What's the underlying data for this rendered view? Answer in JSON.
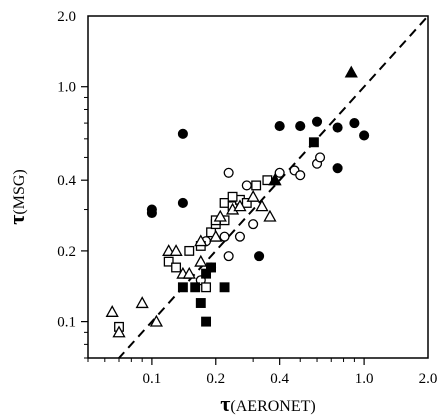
{
  "chart_data": {
    "type": "scatter",
    "title": "",
    "xlabel": {
      "symbol": "τ",
      "text": "(AERONET)"
    },
    "ylabel": {
      "symbol": "τ",
      "text": "(MSG)"
    },
    "xscale": "log",
    "yscale": "log",
    "xlim": [
      0.05,
      2.0
    ],
    "ylim": [
      0.07,
      2.0
    ],
    "xticks": [
      {
        "value": 0.1,
        "label": "0.1"
      },
      {
        "value": 0.2,
        "label": "0.2"
      },
      {
        "value": 0.4,
        "label": "0.4"
      },
      {
        "value": 1.0,
        "label": "1.0"
      },
      {
        "value": 2.0,
        "label": "2.0"
      }
    ],
    "yticks": [
      {
        "value": 0.1,
        "label": "0.1"
      },
      {
        "value": 0.2,
        "label": "0.2"
      },
      {
        "value": 0.4,
        "label": "0.4"
      },
      {
        "value": 1.0,
        "label": "1.0"
      },
      {
        "value": 2.0,
        "label": "2.0"
      }
    ],
    "reference_line": {
      "style": "dashed",
      "relation": "y = x"
    },
    "grid": false,
    "legend": "none",
    "series": [
      {
        "marker": "filled-circle",
        "points": [
          [
            0.1,
            0.3
          ],
          [
            0.1,
            0.29
          ],
          [
            0.14,
            0.32
          ],
          [
            0.14,
            0.63
          ],
          [
            0.32,
            0.19
          ],
          [
            0.4,
            0.68
          ],
          [
            0.5,
            0.68
          ],
          [
            0.6,
            0.71
          ],
          [
            0.75,
            0.67
          ],
          [
            0.75,
            0.45
          ],
          [
            0.9,
            0.7
          ],
          [
            1.0,
            0.62
          ]
        ]
      },
      {
        "marker": "open-circle",
        "points": [
          [
            0.18,
            0.22
          ],
          [
            0.23,
            0.19
          ],
          [
            0.26,
            0.23
          ],
          [
            0.28,
            0.38
          ],
          [
            0.23,
            0.43
          ],
          [
            0.4,
            0.43
          ],
          [
            0.47,
            0.44
          ],
          [
            0.5,
            0.42
          ],
          [
            0.6,
            0.47
          ],
          [
            0.62,
            0.5
          ],
          [
            0.22,
            0.23
          ],
          [
            0.19,
            0.17
          ],
          [
            0.17,
            0.15
          ],
          [
            0.3,
            0.26
          ]
        ]
      },
      {
        "marker": "filled-square",
        "points": [
          [
            0.14,
            0.14
          ],
          [
            0.16,
            0.14
          ],
          [
            0.17,
            0.12
          ],
          [
            0.18,
            0.1
          ],
          [
            0.22,
            0.14
          ],
          [
            0.18,
            0.16
          ],
          [
            0.19,
            0.17
          ],
          [
            0.58,
            0.58
          ]
        ]
      },
      {
        "marker": "open-square",
        "points": [
          [
            0.07,
            0.095
          ],
          [
            0.12,
            0.18
          ],
          [
            0.13,
            0.17
          ],
          [
            0.15,
            0.2
          ],
          [
            0.17,
            0.21
          ],
          [
            0.18,
            0.14
          ],
          [
            0.19,
            0.24
          ],
          [
            0.2,
            0.26
          ],
          [
            0.22,
            0.27
          ],
          [
            0.22,
            0.32
          ],
          [
            0.24,
            0.31
          ],
          [
            0.26,
            0.33
          ],
          [
            0.28,
            0.32
          ],
          [
            0.31,
            0.38
          ],
          [
            0.35,
            0.4
          ],
          [
            0.2,
            0.27
          ],
          [
            0.24,
            0.34
          ]
        ]
      },
      {
        "marker": "open-triangle",
        "points": [
          [
            0.065,
            0.11
          ],
          [
            0.07,
            0.09
          ],
          [
            0.09,
            0.12
          ],
          [
            0.105,
            0.1
          ],
          [
            0.12,
            0.2
          ],
          [
            0.13,
            0.2
          ],
          [
            0.14,
            0.16
          ],
          [
            0.15,
            0.16
          ],
          [
            0.17,
            0.18
          ],
          [
            0.17,
            0.22
          ],
          [
            0.2,
            0.23
          ],
          [
            0.21,
            0.28
          ],
          [
            0.24,
            0.3
          ],
          [
            0.26,
            0.31
          ],
          [
            0.3,
            0.34
          ],
          [
            0.33,
            0.31
          ],
          [
            0.36,
            0.28
          ],
          [
            0.38,
            0.4
          ]
        ]
      },
      {
        "marker": "filled-triangle",
        "points": [
          [
            0.38,
            0.4
          ],
          [
            0.87,
            1.15
          ]
        ]
      }
    ]
  }
}
